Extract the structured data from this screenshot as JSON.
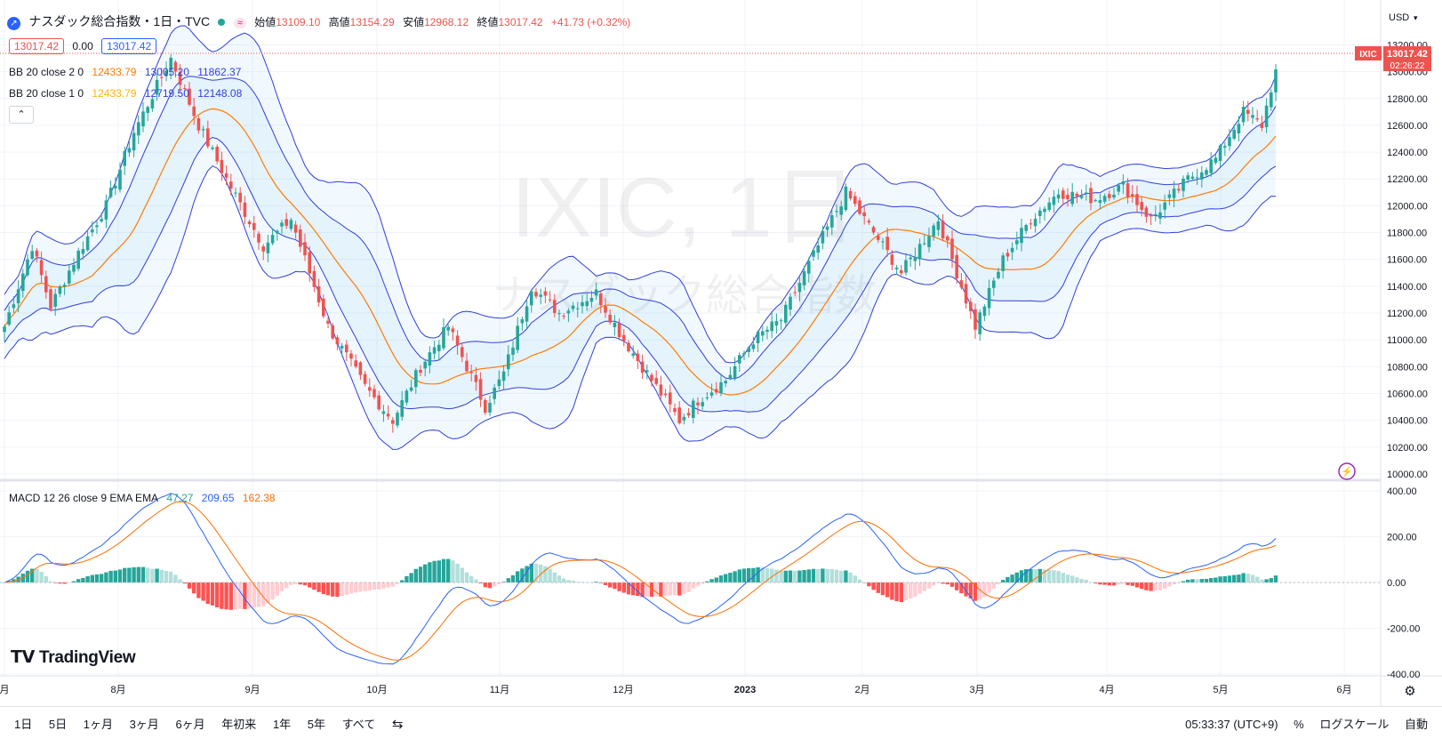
{
  "header": {
    "title": "ナスダック総合指数・1日・TVC",
    "ohlc": [
      {
        "label": "始値",
        "value": "13109.10"
      },
      {
        "label": "高値",
        "value": "13154.29"
      },
      {
        "label": "安値",
        "value": "12968.12"
      },
      {
        "label": "終値",
        "value": "13017.42"
      }
    ],
    "change": "+41.73 (+0.32%)",
    "bid": "13017.42",
    "spread": "0.00",
    "ask": "13017.42"
  },
  "indicators": [
    {
      "label": "BB 20 close 2 0",
      "values": [
        "12433.79",
        "13005.20",
        "11862.37"
      ]
    },
    {
      "label": "BB 20 close 1 0",
      "values": [
        "12433.79",
        "12719.50",
        "12148.08"
      ]
    }
  ],
  "watermark": {
    "line1": "IXIC, 1日",
    "line2": "ナスダック総合指数"
  },
  "price_tag": {
    "symbol": "IXIC",
    "price": "13017.42",
    "countdown": "02:26:22"
  },
  "currency": "USD",
  "macd": {
    "label": "MACD 12 26 close 9 EMA EMA",
    "values": [
      "47.27",
      "209.65",
      "162.38"
    ]
  },
  "logo": "TradingView",
  "bottom": {
    "ranges": [
      "1日",
      "5日",
      "1ヶ月",
      "3ヶ月",
      "6ヶ月",
      "年初来",
      "1年",
      "5年",
      "すべて"
    ],
    "time": "05:33:37 (UTC+9)",
    "percent": "%",
    "log": "ログスケール",
    "auto": "自動"
  },
  "colors": {
    "up": "#26a69a",
    "down": "#ef5350",
    "bbmid": "#ff7b00",
    "bbband": "#2f3edc",
    "macd": "#2962ff",
    "signal": "#ff6d00"
  },
  "chart_data": {
    "type": "candlestick",
    "price_axis": {
      "ticks": [
        10000,
        10200,
        10400,
        10600,
        10800,
        11000,
        11200,
        11400,
        11600,
        11800,
        12000,
        12200,
        12400,
        12600,
        12800,
        13000,
        13200
      ],
      "labels": [
        "10000.00",
        "10200.00",
        "10400.00",
        "10600.00",
        "10800.00",
        "11000.00",
        "11200.00",
        "11400.00",
        "11600.00",
        "11800.00",
        "12000.00",
        "12200.00",
        "12400.00",
        "12600.00",
        "12800.00",
        "13000.00",
        "13200.00"
      ]
    },
    "macd_axis": {
      "ticks": [
        -400,
        -200,
        0,
        200,
        400
      ],
      "labels": [
        "-400.00",
        "-200.00",
        "0.00",
        "200.00",
        "400.00"
      ]
    },
    "time_axis": [
      "月",
      "8月",
      "9月",
      "10月",
      "11月",
      "12月",
      "2023",
      "2月",
      "3月",
      "4月",
      "5月",
      "6月"
    ],
    "anchors": [
      {
        "d": 0,
        "c": 11100
      },
      {
        "d": 6,
        "c": 11700
      },
      {
        "d": 10,
        "c": 11250
      },
      {
        "d": 16,
        "c": 11650
      },
      {
        "d": 22,
        "c": 12000
      },
      {
        "d": 28,
        "c": 12550
      },
      {
        "d": 36,
        "c": 13100
      },
      {
        "d": 42,
        "c": 12600
      },
      {
        "d": 48,
        "c": 12200
      },
      {
        "d": 56,
        "c": 11700
      },
      {
        "d": 62,
        "c": 11900
      },
      {
        "d": 70,
        "c": 11100
      },
      {
        "d": 78,
        "c": 10650
      },
      {
        "d": 84,
        "c": 10400
      },
      {
        "d": 90,
        "c": 10800
      },
      {
        "d": 96,
        "c": 11100
      },
      {
        "d": 104,
        "c": 10500
      },
      {
        "d": 108,
        "c": 10750
      },
      {
        "d": 114,
        "c": 11400
      },
      {
        "d": 120,
        "c": 11200
      },
      {
        "d": 128,
        "c": 11350
      },
      {
        "d": 134,
        "c": 11000
      },
      {
        "d": 140,
        "c": 10700
      },
      {
        "d": 146,
        "c": 10400
      },
      {
        "d": 150,
        "c": 10550
      },
      {
        "d": 156,
        "c": 10700
      },
      {
        "d": 162,
        "c": 11000
      },
      {
        "d": 168,
        "c": 11150
      },
      {
        "d": 176,
        "c": 11700
      },
      {
        "d": 182,
        "c": 12100
      },
      {
        "d": 188,
        "c": 11800
      },
      {
        "d": 194,
        "c": 11500
      },
      {
        "d": 202,
        "c": 11900
      },
      {
        "d": 210,
        "c": 11100
      },
      {
        "d": 216,
        "c": 11600
      },
      {
        "d": 222,
        "c": 11900
      },
      {
        "d": 228,
        "c": 12100
      },
      {
        "d": 236,
        "c": 12050
      },
      {
        "d": 242,
        "c": 12150
      },
      {
        "d": 248,
        "c": 11900
      },
      {
        "d": 256,
        "c": 12200
      },
      {
        "d": 262,
        "c": 12350
      },
      {
        "d": 268,
        "c": 12700
      },
      {
        "d": 272,
        "c": 12600
      },
      {
        "d": 275,
        "c": 13017
      }
    ]
  }
}
